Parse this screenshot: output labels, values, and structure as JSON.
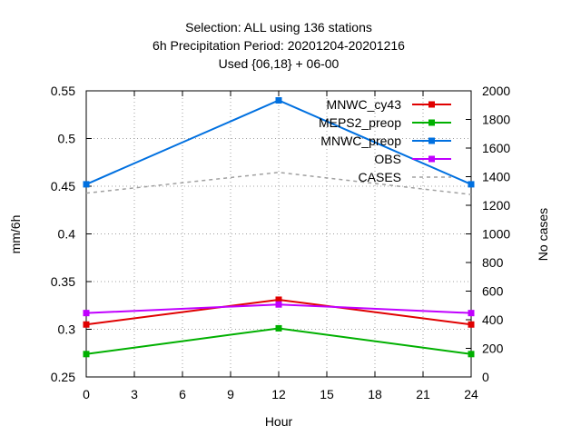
{
  "chart_data": {
    "type": "line",
    "title_lines": [
      "Selection: ALL using   136 stations",
      "6h Precipitation    Period: 20201204-20201216",
      "Used {06,18} + 06-00"
    ],
    "xlabel": "Hour",
    "ylabel": "mm/6h",
    "y2label": "No cases",
    "xlim": [
      0,
      24
    ],
    "xticks": [
      0,
      3,
      6,
      9,
      12,
      15,
      18,
      21,
      24
    ],
    "ylim": [
      0.25,
      0.55
    ],
    "yticks": [
      0.25,
      0.3,
      0.35,
      0.4,
      0.45,
      0.5,
      0.55
    ],
    "ytick_labels": [
      "0.25",
      "0.3",
      "0.35",
      "0.4",
      "0.45",
      "0.5",
      "0.55"
    ],
    "y2lim": [
      0,
      2000
    ],
    "y2ticks": [
      0,
      200,
      400,
      600,
      800,
      1000,
      1200,
      1400,
      1600,
      1800,
      2000
    ],
    "grid": true,
    "legend_position": "top-right",
    "x": [
      0,
      12,
      24
    ],
    "series": [
      {
        "name": "MNWC_cy43",
        "color": "#e00000",
        "axis": "y",
        "marker": "square",
        "values": [
          0.305,
          0.331,
          0.305
        ]
      },
      {
        "name": "MEPS2_preop",
        "color": "#00b000",
        "axis": "y",
        "marker": "square",
        "values": [
          0.274,
          0.301,
          0.274
        ]
      },
      {
        "name": "MNWC_preop",
        "color": "#0070e0",
        "axis": "y",
        "marker": "square",
        "values": [
          0.452,
          0.54,
          0.452
        ]
      },
      {
        "name": "OBS",
        "color": "#c000ff",
        "axis": "y",
        "marker": "square",
        "values": [
          0.317,
          0.326,
          0.317
        ]
      },
      {
        "name": "CASES",
        "color": "#a0a0a0",
        "axis": "y2",
        "marker": "none",
        "dashed": true,
        "values": [
          1285,
          1430,
          1275
        ]
      }
    ]
  }
}
